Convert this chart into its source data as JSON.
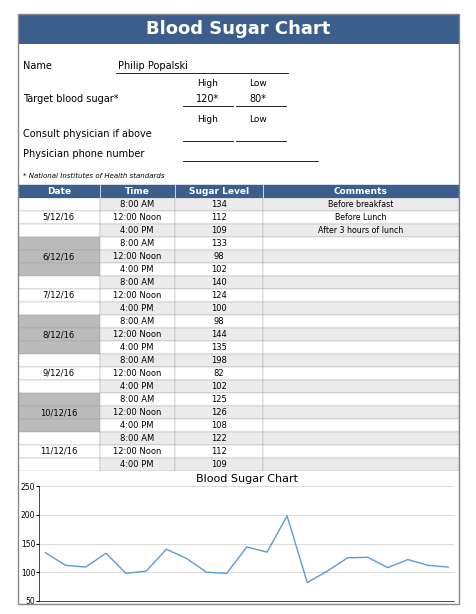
{
  "title": "Blood Sugar Chart",
  "title_bg": "#3B5E8C",
  "title_color": "white",
  "name_label": "Name",
  "name_value": "Philip Popalski",
  "target_label": "Target blood sugar*",
  "high_label": "High",
  "low_label": "Low",
  "target_high": "120*",
  "target_low": "80*",
  "consult_label": "Consult physician if above",
  "phone_label": "Physician phone number",
  "footnote": "* National Institutes of Health standards",
  "table_header": [
    "Date",
    "Time",
    "Sugar Level",
    "Comments"
  ],
  "table_header_bg": "#3B5E8C",
  "table_header_color": "white",
  "rows": [
    {
      "date": "5/12/16",
      "times": [
        "8:00 AM",
        "12:00 Noon",
        "4:00 PM"
      ],
      "levels": [
        134,
        112,
        109
      ],
      "comments": [
        "Before breakfast",
        "Before Lunch",
        "After 3 hours of lunch"
      ],
      "shaded": false
    },
    {
      "date": "6/12/16",
      "times": [
        "8:00 AM",
        "12:00 Noon",
        "4:00 PM"
      ],
      "levels": [
        133,
        98,
        102
      ],
      "comments": [
        "",
        "",
        ""
      ],
      "shaded": true
    },
    {
      "date": "7/12/16",
      "times": [
        "8:00 AM",
        "12:00 Noon",
        "4:00 PM"
      ],
      "levels": [
        140,
        124,
        100
      ],
      "comments": [
        "",
        "",
        ""
      ],
      "shaded": false
    },
    {
      "date": "8/12/16",
      "times": [
        "8:00 AM",
        "12:00 Noon",
        "4:00 PM"
      ],
      "levels": [
        98,
        144,
        135
      ],
      "comments": [
        "",
        "",
        ""
      ],
      "shaded": true
    },
    {
      "date": "9/12/16",
      "times": [
        "8:00 AM",
        "12:00 Noon",
        "4:00 PM"
      ],
      "levels": [
        198,
        82,
        102
      ],
      "comments": [
        "",
        "",
        ""
      ],
      "shaded": false
    },
    {
      "date": "10/12/16",
      "times": [
        "8:00 AM",
        "12:00 Noon",
        "4:00 PM"
      ],
      "levels": [
        125,
        126,
        108
      ],
      "comments": [
        "",
        "",
        ""
      ],
      "shaded": true
    },
    {
      "date": "11/12/16",
      "times": [
        "8:00 AM",
        "12:00 Noon",
        "4:00 PM"
      ],
      "levels": [
        122,
        112,
        109
      ],
      "comments": [
        "",
        "",
        ""
      ],
      "shaded": false
    }
  ],
  "row_shaded_color": "#BBBBBB",
  "row_normal_color": "#FFFFFF",
  "row_alt_color": "#EBEBEB",
  "grid_color": "#999999",
  "line_color": "#5B9BD5",
  "chart_title": "Blood Sugar Chart",
  "chart_yticks": [
    50,
    100,
    150,
    200,
    250
  ],
  "chart_ylim": [
    50,
    250
  ],
  "outer_border_color": "#888888",
  "title_fontsize": 13,
  "header_fontsize": 6.5,
  "cell_fontsize": 6.0,
  "info_fontsize": 7.0
}
